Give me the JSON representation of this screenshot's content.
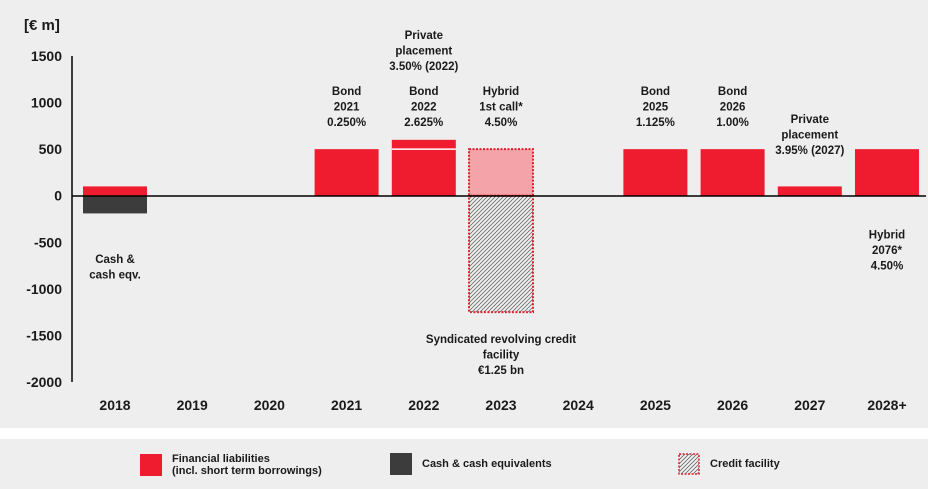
{
  "chart_data": {
    "type": "bar",
    "unit_label": "[€ m]",
    "categories": [
      "2018",
      "2019",
      "2020",
      "2021",
      "2022",
      "2023",
      "2024",
      "2025",
      "2026",
      "2027",
      "2028+"
    ],
    "ylim": [
      -2000,
      1500
    ],
    "yticks": [
      "1500",
      "1000",
      "500",
      "0",
      "-500",
      "-1000",
      "-1500",
      "-2000"
    ],
    "colors": {
      "financial_liabilities": "#ee1c2e",
      "cash": "#3c3c3c",
      "credit_facility_fill": "#f4a3a8",
      "credit_facility_border": "#e0202e"
    },
    "bars": [
      {
        "category": "2018",
        "kind": "financial_liabilities",
        "from": 0,
        "to": 100
      },
      {
        "category": "2018",
        "kind": "cash",
        "from": 0,
        "to": -190
      },
      {
        "category": "2021",
        "kind": "financial_liabilities",
        "from": 0,
        "to": 500
      },
      {
        "category": "2022",
        "kind": "financial_liabilities",
        "from": 0,
        "to": 500
      },
      {
        "category": "2022",
        "kind": "financial_liabilities",
        "from": 500,
        "to": 600
      },
      {
        "category": "2023",
        "kind": "credit_facility_positive",
        "from": 0,
        "to": 500
      },
      {
        "category": "2023",
        "kind": "credit_facility_negative",
        "from": 0,
        "to": -1250
      },
      {
        "category": "2025",
        "kind": "financial_liabilities",
        "from": 0,
        "to": 500
      },
      {
        "category": "2026",
        "kind": "financial_liabilities",
        "from": 0,
        "to": 500
      },
      {
        "category": "2027",
        "kind": "financial_liabilities",
        "from": 0,
        "to": 100
      },
      {
        "category": "2028+",
        "kind": "financial_liabilities",
        "from": 0,
        "to": 500
      }
    ],
    "annotations": [
      {
        "category": "2018",
        "value": -720,
        "lines": [
          "Cash &",
          "cash eqv."
        ]
      },
      {
        "category": "2021",
        "value": 1080,
        "lines": [
          "Bond",
          "2021",
          "0.250%"
        ]
      },
      {
        "category": "2022",
        "value": 1680,
        "lines": [
          "Private",
          "placement",
          "3.50% (2022)"
        ]
      },
      {
        "category": "2022",
        "value": 1080,
        "lines": [
          "Bond",
          "2022",
          "2.625%"
        ]
      },
      {
        "category": "2023",
        "value": 1080,
        "lines": [
          "Hybrid",
          "1st call*",
          "4.50%"
        ]
      },
      {
        "category": "2023",
        "value": -1580,
        "lines": [
          "Syndicated revolving credit",
          "facility",
          "€1.25 bn"
        ]
      },
      {
        "category": "2025",
        "value": 1080,
        "lines": [
          "Bond",
          "2025",
          "1.125%"
        ]
      },
      {
        "category": "2026",
        "value": 1080,
        "lines": [
          "Bond",
          "2026",
          "1.00%"
        ]
      },
      {
        "category": "2027",
        "value": 780,
        "lines": [
          "Private",
          "placement",
          "3.95% (2027)"
        ]
      },
      {
        "category": "2028+",
        "value": -460,
        "lines": [
          "Hybrid",
          "2076*",
          "4.50%"
        ]
      }
    ]
  },
  "legend": {
    "financial_liabilities": "Financial liabilities\n(incl. short term borrowings)",
    "cash": "Cash & cash equivalents",
    "credit_facility": "Credit facility"
  }
}
